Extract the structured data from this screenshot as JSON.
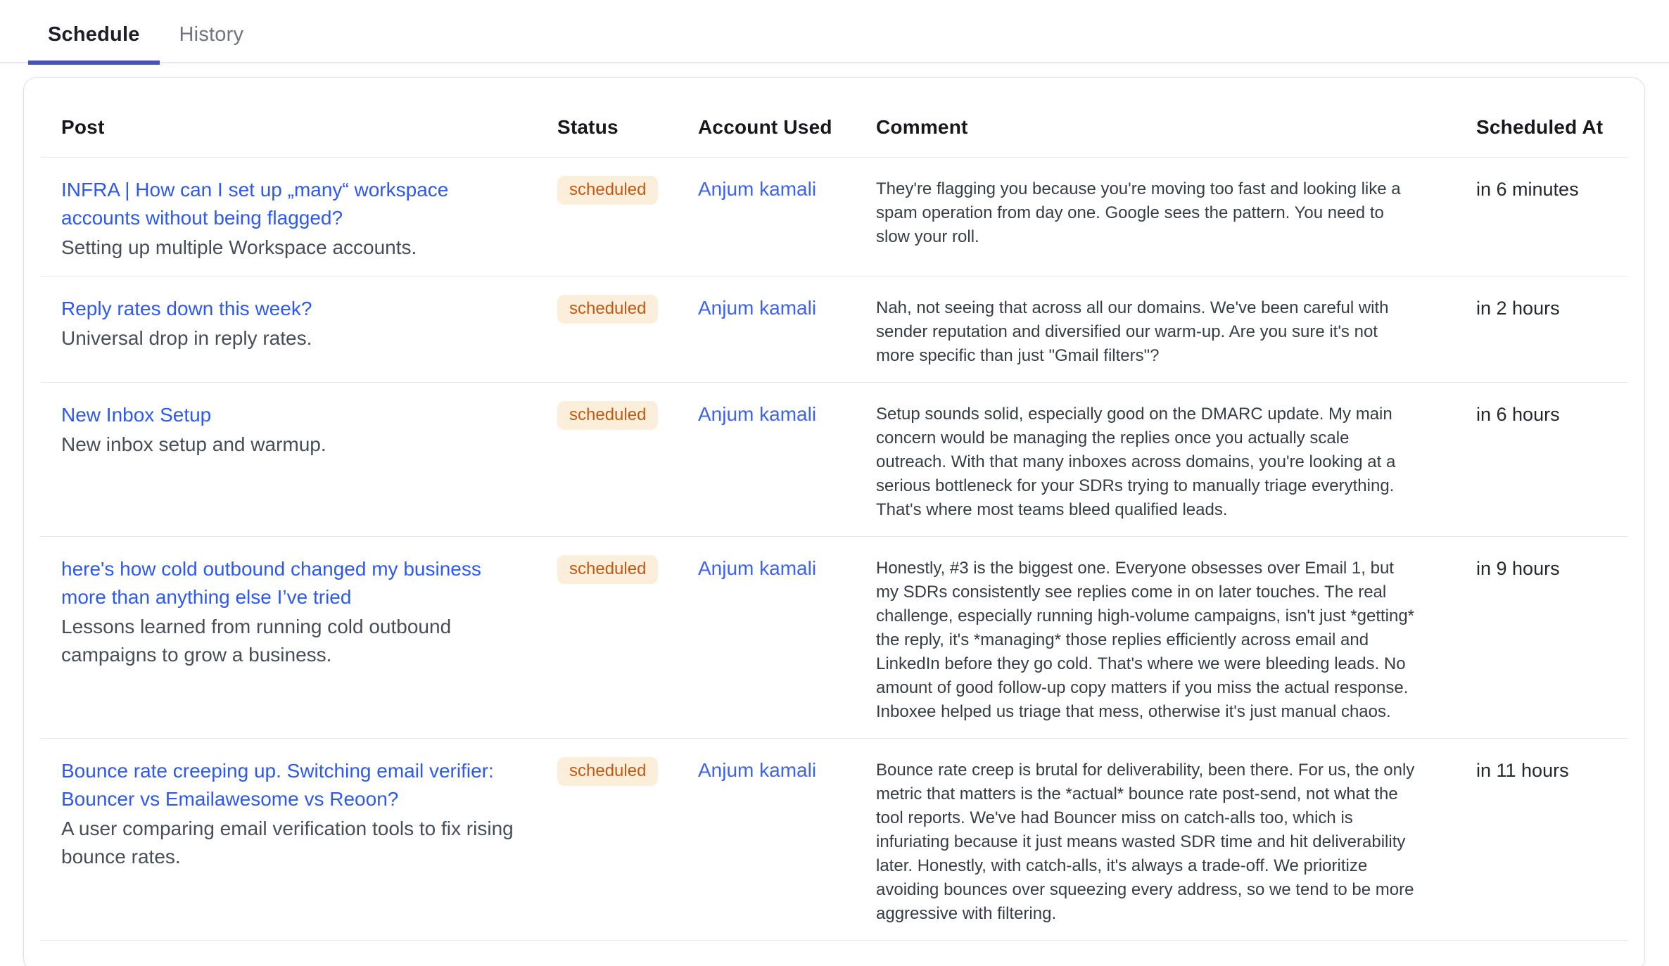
{
  "tabs": [
    {
      "label": "Schedule",
      "active": true
    },
    {
      "label": "History",
      "active": false
    }
  ],
  "table": {
    "columns": [
      "Post",
      "Status",
      "Account Used",
      "Comment",
      "Scheduled At"
    ],
    "rows": [
      {
        "title": "INFRA | How can I set up „many“ workspace accounts without being flagged?",
        "description": "Setting up multiple Workspace accounts.",
        "status": "scheduled",
        "account": "Anjum kamali",
        "comment": "They're flagging you because you're moving too fast and looking like a spam operation from day one. Google sees the pattern. You need to slow your roll.",
        "scheduled_at": "in 6 minutes"
      },
      {
        "title": "Reply rates down this week?",
        "description": "Universal drop in reply rates.",
        "status": "scheduled",
        "account": "Anjum kamali",
        "comment": "Nah, not seeing that across all our domains. We've been careful with sender reputation and diversified our warm-up. Are you sure it's not more specific than just \"Gmail filters\"?",
        "scheduled_at": "in 2 hours"
      },
      {
        "title": "New Inbox Setup",
        "description": "New inbox setup and warmup.",
        "status": "scheduled",
        "account": "Anjum kamali",
        "comment": "Setup sounds solid, especially good on the DMARC update. My main concern would be managing the replies once you actually scale outreach. With that many inboxes across domains, you're looking at a serious bottleneck for your SDRs trying to manually triage everything. That's where most teams bleed qualified leads.",
        "scheduled_at": "in 6 hours"
      },
      {
        "title": "here's how cold outbound changed my business more than anything else I’ve tried",
        "description": "Lessons learned from running cold outbound campaigns to grow a business.",
        "status": "scheduled",
        "account": "Anjum kamali",
        "comment": "Honestly, #3 is the biggest one. Everyone obsesses over Email 1, but my SDRs consistently see replies come in on later touches. The real challenge, especially running high-volume campaigns, isn't just *getting* the reply, it's *managing* those replies efficiently across email and LinkedIn before they go cold. That's where we were bleeding leads. No amount of good follow-up copy matters if you miss the actual response. Inboxee helped us triage that mess, otherwise it's just manual chaos.",
        "scheduled_at": "in 9 hours"
      },
      {
        "title": "Bounce rate creeping up. Switching email verifier: Bouncer vs Emailawesome vs Reoon?",
        "description": "A user comparing email verification tools to fix rising bounce rates.",
        "status": "scheduled",
        "account": "Anjum kamali",
        "comment": "Bounce rate creep is brutal for deliverability, been there. For us, the only metric that matters is the *actual* bounce rate post-send, not what the tool reports. We've had Bouncer miss on catch-alls too, which is infuriating because it just means wasted SDR time and hit deliverability later. Honestly, with catch-alls, it's always a trade-off. We prioritize avoiding bounces over squeezing every address, so we tend to be more aggressive with filtering.",
        "scheduled_at": "in 11 hours"
      }
    ]
  },
  "colors": {
    "tab_indicator": "#4453b8",
    "link_blue": "#2e59f0",
    "account_blue": "#3e64ee",
    "badge_background": "#fbeeda",
    "badge_text": "#c35a11",
    "divider": "#e7e7ec"
  }
}
